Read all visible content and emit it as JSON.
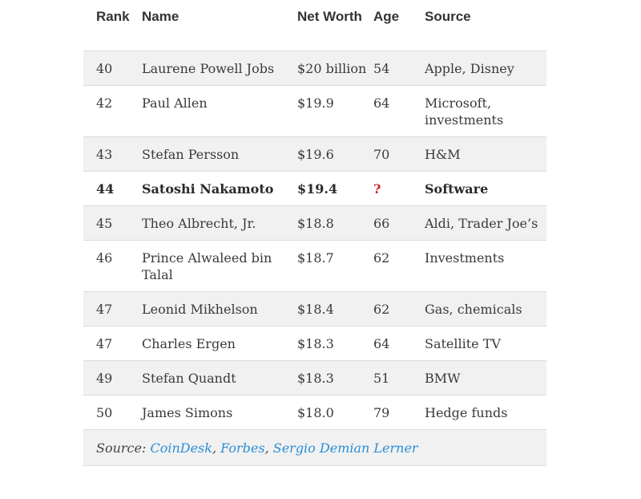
{
  "table": {
    "headers": {
      "rank": "Rank",
      "name": "Name",
      "net_worth": "Net Worth",
      "age": "Age",
      "source": "Source"
    },
    "rows": [
      {
        "rank": "40",
        "name": "Laurene Powell Jobs",
        "net_worth": "$20 billion",
        "age": "54",
        "source": "Apple, Disney"
      },
      {
        "rank": "42",
        "name": "Paul Allen",
        "net_worth": "$19.9",
        "age": "64",
        "source": "Microsoft, investments"
      },
      {
        "rank": "43",
        "name": "Stefan Persson",
        "net_worth": "$19.6",
        "age": "70",
        "source": "H&M"
      },
      {
        "rank": "44",
        "name": "Satoshi Nakamoto",
        "net_worth": "$19.4",
        "age": "?",
        "source": "Software"
      },
      {
        "rank": "45",
        "name": "Theo Albrecht, Jr.",
        "net_worth": "$18.8",
        "age": "66",
        "source": "Aldi, Trader Joe’s"
      },
      {
        "rank": "46",
        "name": "Prince Alwaleed bin Talal",
        "net_worth": "$18.7",
        "age": "62",
        "source": "Investments"
      },
      {
        "rank": "47",
        "name": "Leonid Mikhelson",
        "net_worth": "$18.4",
        "age": "62",
        "source": "Gas, chemicals"
      },
      {
        "rank": "47",
        "name": "Charles Ergen",
        "net_worth": "$18.3",
        "age": "64",
        "source": "Satellite TV"
      },
      {
        "rank": "49",
        "name": "Stefan Quandt",
        "net_worth": "$18.3",
        "age": "51",
        "source": "BMW"
      },
      {
        "rank": "50",
        "name": "James Simons",
        "net_worth": "$18.0",
        "age": "79",
        "source": "Hedge funds"
      }
    ],
    "highlight_color": "#c8242b",
    "link_color": "#2a8fd6"
  },
  "source_line": {
    "label": "Source: ",
    "links": [
      "CoinDesk",
      "Forbes",
      "Sergio Demian Lerner"
    ],
    "separator": ", "
  }
}
